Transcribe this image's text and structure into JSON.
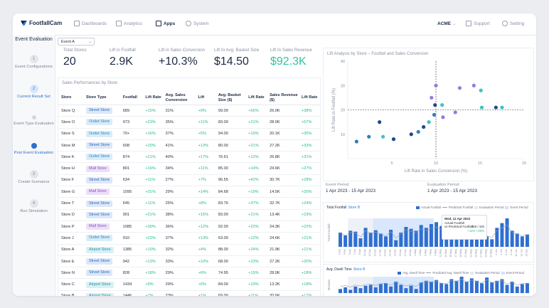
{
  "brand": {
    "name": "FootfallCam"
  },
  "nav": {
    "items": [
      {
        "label": "Dashboards",
        "icon": "dashboard-icon"
      },
      {
        "label": "Analytics",
        "icon": "analytics-icon"
      },
      {
        "label": "Apps",
        "icon": "apps-grid-icon"
      },
      {
        "label": "System",
        "icon": "system-icon"
      }
    ],
    "account": "ACME",
    "support": "Support",
    "setting": "Setting"
  },
  "sidebar": {
    "title": "Event Evaluation",
    "steps": [
      {
        "num": "1",
        "label": "Event Configurations"
      },
      {
        "num": "2",
        "label": "Current Result Set"
      },
      {
        "num": "",
        "label": "Event Type Evaluation"
      },
      {
        "num": "",
        "label": "Post Event Evaluation"
      },
      {
        "num": "3",
        "label": "Create Scenarios"
      },
      {
        "num": "4",
        "label": "Run Simulation"
      }
    ]
  },
  "event_select": {
    "value": "Event A"
  },
  "kpis": [
    {
      "label": "Total Stores",
      "value": "20"
    },
    {
      "label": "Lift in Footfall",
      "value": "2.9K"
    },
    {
      "label": "Lift in Sales Conversion",
      "value": "+10.3%"
    },
    {
      "label": "Lift In Avg. Basket Size",
      "value": "$14.50"
    },
    {
      "label": "Lift In Sales Revenue",
      "value": "$92.3K"
    }
  ],
  "table": {
    "title": "Sales Performances by Store",
    "headers": [
      "Store",
      "Store Type",
      "Footfall",
      "Lift Rate",
      "Avg. Sales Conversion",
      "Lift",
      "Avg. Basket Size ($)",
      "Lift Rate",
      "Sales Revenue ($)",
      "Lift Rate"
    ],
    "rows": [
      [
        "Store Q",
        "Street Store",
        "689",
        "+15%",
        "31%",
        "+9%",
        "99.00",
        "+56%",
        "26.0K",
        "+38%"
      ],
      [
        "Store O",
        "Outlet Store",
        "973",
        "+23%",
        "35%",
        "+11%",
        "83.00",
        "+21%",
        "28.0K",
        "+57%"
      ],
      [
        "Store S",
        "Outlet Store",
        "70+",
        "+16%",
        "37%",
        "+5%",
        "94.00",
        "+19%",
        "20.1K",
        "+35%"
      ],
      [
        "Store M",
        "Street Store",
        "608",
        "+20%",
        "41%",
        "+13%",
        "80.00",
        "+21%",
        "27.2K",
        "+33%"
      ],
      [
        "Store K",
        "Outlet Store",
        "874",
        "+21%",
        "40%",
        "+17%",
        "76.61",
        "+12%",
        "26.8K",
        "+31%"
      ],
      [
        "Store H",
        "Mall Store",
        "801",
        "+16%",
        "34%",
        "+11%",
        "85.00",
        "+14%",
        "24.6K",
        "+27%"
      ],
      [
        "Store F",
        "Street Store",
        "634",
        "+11%",
        "27%",
        "+7%",
        "96.55",
        "+42%",
        "30.7K",
        "+28%"
      ],
      [
        "Store G",
        "Mall Store",
        "1095",
        "+31%",
        "29%",
        "+14%",
        "84.68",
        "+19%",
        "14.5K",
        "+25%"
      ],
      [
        "Store T",
        "Street Store",
        "645",
        "+11%",
        "25%",
        "+8%",
        "83.76",
        "+37%",
        "32.7K",
        "+24%"
      ],
      [
        "Store D",
        "Street Store",
        "901",
        "+21%",
        "38%",
        "+15%",
        "83.00",
        "+21%",
        "13.4K",
        "+23%"
      ],
      [
        "Store P",
        "Mall Store",
        "1085",
        "+30%",
        "36%",
        "+12%",
        "92.00",
        "+22%",
        "24.3K",
        "+22%"
      ],
      [
        "Store J",
        "Outlet Store",
        "910",
        "+22%",
        "37%",
        "+13%",
        "63.00",
        "+12%",
        "24.6K",
        "+21%"
      ],
      [
        "Store A",
        "Airport Store",
        "1385",
        "+10%",
        "32%",
        "+4%",
        "88.00",
        "+24%",
        "21.9K",
        "+21%"
      ],
      [
        "Store E",
        "Street Store",
        "942",
        "+13%",
        "33%",
        "+10%",
        "68.00",
        "+23%",
        "27.2K",
        "+20%"
      ],
      [
        "Store N",
        "Street Store",
        "828",
        "+18%",
        "29%",
        "+6%",
        "74.95",
        "+15%",
        "28.0K",
        "+18%"
      ],
      [
        "Store C",
        "Airport Store",
        "1434",
        "+9%",
        "29%",
        "+6%",
        "84.00",
        "+19%",
        "13.2K",
        "+18%"
      ],
      [
        "Store B",
        "Airport Store",
        "1446",
        "+7%",
        "23%",
        "+1%",
        "69.00",
        "+11%",
        "20.6K",
        "+17%"
      ]
    ]
  },
  "scatter": {
    "title": "Lift Analysis by Store – Footfall and Sales Conversion",
    "colors": {
      "airport": "#2f7fb5",
      "street": "#1f4a8a",
      "mall": "#9b78dd",
      "outlet": "#3dc2c6"
    }
  },
  "chart_data": [
    {
      "type": "scatter",
      "title": "Lift Analysis by Store – Footfall and Sales Conversion",
      "xlabel": "Lift Rate in Sales Conversion (%)",
      "ylabel": "Lift Rate in Footfall (%)",
      "xlim": [
        0,
        20
      ],
      "ylim": [
        0,
        40
      ],
      "xticks": [
        "5",
        "10",
        "15",
        "20"
      ],
      "yticks": [
        "10",
        "20",
        "30",
        "40"
      ],
      "reference_lines": {
        "x": 10,
        "y": 20
      },
      "points": [
        {
          "x": 1,
          "y": 7,
          "group": "airport"
        },
        {
          "x": 2.4,
          "y": 9,
          "group": "airport"
        },
        {
          "x": 3.6,
          "y": 15,
          "group": "street"
        },
        {
          "x": 4,
          "y": 9,
          "group": "outlet"
        },
        {
          "x": 5.2,
          "y": 8,
          "group": "street"
        },
        {
          "x": 7.2,
          "y": 10,
          "group": "street"
        },
        {
          "x": 8,
          "y": 11,
          "group": "airport"
        },
        {
          "x": 8.6,
          "y": 13,
          "group": "street"
        },
        {
          "x": 9.2,
          "y": 15,
          "group": "outlet"
        },
        {
          "x": 9.8,
          "y": 18,
          "group": "airport"
        },
        {
          "x": 9.9,
          "y": 22,
          "group": "street"
        },
        {
          "x": 9.5,
          "y": 25,
          "group": "mall"
        },
        {
          "x": 10,
          "y": 30,
          "group": "mall"
        },
        {
          "x": 10.7,
          "y": 22,
          "group": "outlet"
        },
        {
          "x": 10.8,
          "y": 17,
          "group": "mall"
        },
        {
          "x": 12.2,
          "y": 19,
          "group": "mall"
        },
        {
          "x": 12.7,
          "y": 29,
          "group": "mall"
        },
        {
          "x": 14.3,
          "y": 30,
          "group": "mall"
        },
        {
          "x": 15.1,
          "y": 28,
          "group": "outlet"
        },
        {
          "x": 15.2,
          "y": 21,
          "group": "outlet"
        },
        {
          "x": 16.8,
          "y": 21,
          "group": "street"
        },
        {
          "x": 17.5,
          "y": 21,
          "group": "outlet"
        }
      ]
    },
    {
      "type": "bar",
      "title": "Total Footfall",
      "series": [
        {
          "name": "Actual Footfall",
          "values": [
            30,
            24,
            34,
            32,
            18,
            40,
            30,
            35,
            28,
            22,
            36,
            14,
            30,
            42,
            38,
            34,
            46,
            40,
            48,
            52,
            44,
            40,
            36,
            46,
            38,
            30,
            26,
            20,
            34,
            22,
            16,
            40,
            50,
            60,
            34,
            28,
            22,
            26
          ]
        }
      ],
      "ylabel": "Total Footfall"
    },
    {
      "type": "bar",
      "title": "Avg. Dwell Time",
      "series": [
        {
          "name": "Avg. Dwell Time",
          "values": [
            10,
            14,
            8,
            16,
            12,
            18,
            20,
            14,
            22,
            24,
            16,
            28,
            20,
            12,
            18,
            10,
            26,
            30,
            28,
            32,
            24,
            22,
            34,
            30,
            40,
            28,
            36,
            30,
            24,
            38,
            26,
            30,
            34,
            20,
            28,
            16,
            22,
            24
          ]
        }
      ],
      "ylabel": "Minutes"
    }
  ],
  "periods": [
    {
      "label": "Event Period",
      "value": "1 Apr 2023 - 15 Apr 2023"
    },
    {
      "label": "Evaluation Period",
      "value": "1 Apr 2023 - 15 Apr 2023"
    }
  ],
  "footfall_chart": {
    "title": "Total Footfall",
    "store": "Store B",
    "ylabel": "Total Footfall",
    "legend": [
      "Actual Footfall",
      "Predicted Footfall",
      "Evaluation Period",
      "Event Period"
    ],
    "tooltip": {
      "date": "Wed, 12 Apr 2023",
      "l1": "Actual Footfall",
      "l2": "vs Predicted Footfall",
      "v1": "468 / 420",
      "v2": "+11% +29%"
    },
    "x_labels": [
      "1 Apr",
      "3 Apr",
      "5 Apr",
      "7 Apr",
      "9 Apr",
      "11 Apr",
      "13 Apr",
      "15 Apr",
      "17 Apr",
      "19 Apr",
      "21 Apr",
      "23 Apr",
      "25 Apr",
      "27 Apr",
      "29 Apr",
      "1 May",
      "3 May",
      "5 May",
      "7 May",
      "9 May",
      "11 May",
      "13 May",
      "15 May",
      "17 May",
      "19 May",
      "21 May",
      "23 May",
      "25 May",
      "27 May",
      "29 May",
      "31 May",
      "2 Jun",
      "4 Jun",
      "6 Jun",
      "8 Jun",
      "10 Jun",
      "12 Jun",
      "24 Apr"
    ]
  },
  "dwell_chart": {
    "title": "Avg. Dwell Time",
    "store": "Store B",
    "ylabel": "Minutes",
    "legend": [
      "Avg. Dwell Time",
      "Predicted Avg. Dwell Time",
      "Evaluation Period",
      "Event Period"
    ]
  }
}
